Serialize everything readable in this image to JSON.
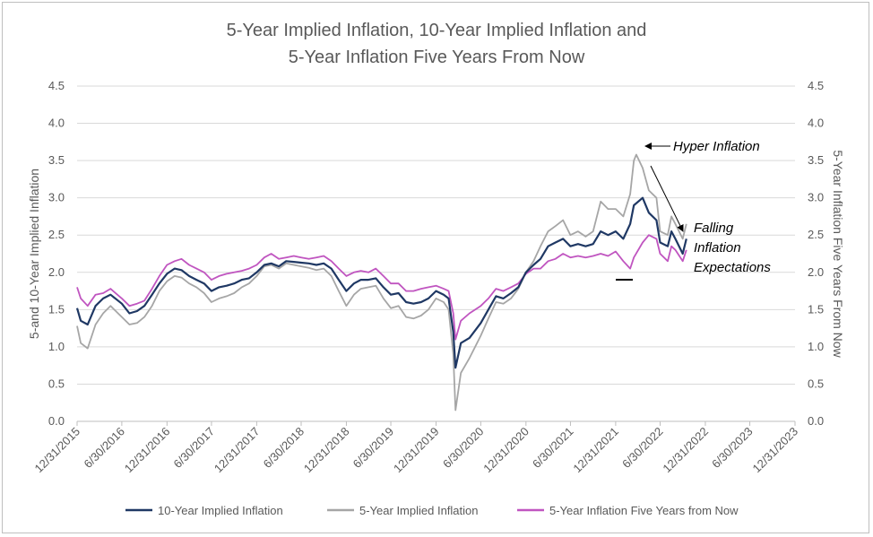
{
  "chart_data": {
    "type": "line",
    "title_line1": "5-Year Implied Inflation, 10-Year Implied Inflation and",
    "title_line2": "5-Year Inflation Five Years From Now",
    "ylabel_left": "5-and 10-Year Implied Inflation",
    "ylabel_right": "5-Year Inflation Five Years From Now",
    "ylim": [
      0,
      4.5
    ],
    "yticks": [
      "0.0",
      "0.5",
      "1.0",
      "1.5",
      "2.0",
      "2.5",
      "3.0",
      "3.5",
      "4.0",
      "4.5"
    ],
    "x_range": [
      "2015-12-31",
      "2023-12-31"
    ],
    "xticks": [
      "12/31/2015",
      "6/30/2016",
      "12/31/2016",
      "6/30/2017",
      "12/31/2017",
      "6/30/2018",
      "12/31/2018",
      "6/30/2019",
      "12/31/2019",
      "6/30/2020",
      "12/31/2020",
      "6/30/2021",
      "12/31/2021",
      "6/30/2022",
      "12/31/2022",
      "6/30/2023",
      "12/31/2023"
    ],
    "grid": true,
    "legend_position": "bottom",
    "series": [
      {
        "name": "10-Year Implied Inflation",
        "color": "#1f3864",
        "points": [
          [
            "2015-12-31",
            1.52
          ],
          [
            "2016-01-15",
            1.35
          ],
          [
            "2016-02-12",
            1.3
          ],
          [
            "2016-03-15",
            1.55
          ],
          [
            "2016-04-15",
            1.65
          ],
          [
            "2016-05-15",
            1.7
          ],
          [
            "2016-06-30",
            1.58
          ],
          [
            "2016-07-31",
            1.45
          ],
          [
            "2016-08-31",
            1.48
          ],
          [
            "2016-09-30",
            1.55
          ],
          [
            "2016-10-31",
            1.7
          ],
          [
            "2016-11-30",
            1.85
          ],
          [
            "2016-12-31",
            1.98
          ],
          [
            "2017-01-31",
            2.05
          ],
          [
            "2017-02-28",
            2.03
          ],
          [
            "2017-03-31",
            1.95
          ],
          [
            "2017-04-30",
            1.9
          ],
          [
            "2017-05-31",
            1.85
          ],
          [
            "2017-06-30",
            1.75
          ],
          [
            "2017-07-31",
            1.8
          ],
          [
            "2017-08-31",
            1.82
          ],
          [
            "2017-09-30",
            1.85
          ],
          [
            "2017-10-31",
            1.9
          ],
          [
            "2017-11-30",
            1.92
          ],
          [
            "2017-12-31",
            2.0
          ],
          [
            "2018-01-31",
            2.1
          ],
          [
            "2018-02-28",
            2.12
          ],
          [
            "2018-03-31",
            2.08
          ],
          [
            "2018-04-30",
            2.15
          ],
          [
            "2018-05-31",
            2.14
          ],
          [
            "2018-06-30",
            2.13
          ],
          [
            "2018-07-31",
            2.12
          ],
          [
            "2018-08-31",
            2.1
          ],
          [
            "2018-09-30",
            2.12
          ],
          [
            "2018-10-31",
            2.05
          ],
          [
            "2018-11-30",
            1.9
          ],
          [
            "2018-12-31",
            1.75
          ],
          [
            "2019-01-31",
            1.85
          ],
          [
            "2019-02-28",
            1.9
          ],
          [
            "2019-03-31",
            1.9
          ],
          [
            "2019-04-30",
            1.92
          ],
          [
            "2019-05-31",
            1.8
          ],
          [
            "2019-06-30",
            1.7
          ],
          [
            "2019-07-31",
            1.72
          ],
          [
            "2019-08-31",
            1.6
          ],
          [
            "2019-09-30",
            1.58
          ],
          [
            "2019-10-31",
            1.6
          ],
          [
            "2019-11-30",
            1.65
          ],
          [
            "2019-12-31",
            1.75
          ],
          [
            "2020-01-31",
            1.7
          ],
          [
            "2020-02-20",
            1.65
          ],
          [
            "2020-03-10",
            1.2
          ],
          [
            "2020-03-19",
            0.72
          ],
          [
            "2020-04-10",
            1.05
          ],
          [
            "2020-05-15",
            1.12
          ],
          [
            "2020-06-30",
            1.32
          ],
          [
            "2020-07-31",
            1.5
          ],
          [
            "2020-08-31",
            1.68
          ],
          [
            "2020-09-30",
            1.65
          ],
          [
            "2020-10-31",
            1.72
          ],
          [
            "2020-11-30",
            1.8
          ],
          [
            "2020-12-31",
            2.0
          ],
          [
            "2021-01-31",
            2.1
          ],
          [
            "2021-02-28",
            2.18
          ],
          [
            "2021-03-31",
            2.35
          ],
          [
            "2021-04-30",
            2.4
          ],
          [
            "2021-05-31",
            2.45
          ],
          [
            "2021-06-30",
            2.35
          ],
          [
            "2021-07-31",
            2.38
          ],
          [
            "2021-08-31",
            2.35
          ],
          [
            "2021-09-30",
            2.38
          ],
          [
            "2021-10-31",
            2.55
          ],
          [
            "2021-11-30",
            2.5
          ],
          [
            "2021-12-31",
            2.55
          ],
          [
            "2022-01-31",
            2.45
          ],
          [
            "2022-02-28",
            2.65
          ],
          [
            "2022-03-15",
            2.9
          ],
          [
            "2022-04-20",
            3.0
          ],
          [
            "2022-05-15",
            2.8
          ],
          [
            "2022-06-15",
            2.7
          ],
          [
            "2022-06-30",
            2.4
          ],
          [
            "2022-07-31",
            2.35
          ],
          [
            "2022-08-15",
            2.55
          ],
          [
            "2022-08-31",
            2.45
          ],
          [
            "2022-09-30",
            2.25
          ],
          [
            "2022-10-15",
            2.45
          ]
        ]
      },
      {
        "name": "5-Year Implied Inflation",
        "color": "#a6a6a6",
        "points": [
          [
            "2015-12-31",
            1.28
          ],
          [
            "2016-01-15",
            1.05
          ],
          [
            "2016-02-12",
            0.98
          ],
          [
            "2016-03-15",
            1.3
          ],
          [
            "2016-04-15",
            1.45
          ],
          [
            "2016-05-15",
            1.55
          ],
          [
            "2016-06-30",
            1.4
          ],
          [
            "2016-07-31",
            1.3
          ],
          [
            "2016-08-31",
            1.32
          ],
          [
            "2016-09-30",
            1.4
          ],
          [
            "2016-10-31",
            1.55
          ],
          [
            "2016-11-30",
            1.75
          ],
          [
            "2016-12-31",
            1.88
          ],
          [
            "2017-01-31",
            1.95
          ],
          [
            "2017-02-28",
            1.93
          ],
          [
            "2017-03-31",
            1.85
          ],
          [
            "2017-04-30",
            1.8
          ],
          [
            "2017-05-31",
            1.72
          ],
          [
            "2017-06-30",
            1.6
          ],
          [
            "2017-07-31",
            1.65
          ],
          [
            "2017-08-31",
            1.68
          ],
          [
            "2017-09-30",
            1.72
          ],
          [
            "2017-10-31",
            1.8
          ],
          [
            "2017-11-30",
            1.85
          ],
          [
            "2017-12-31",
            1.95
          ],
          [
            "2018-01-31",
            2.08
          ],
          [
            "2018-02-28",
            2.1
          ],
          [
            "2018-03-31",
            2.05
          ],
          [
            "2018-04-30",
            2.12
          ],
          [
            "2018-05-31",
            2.1
          ],
          [
            "2018-06-30",
            2.08
          ],
          [
            "2018-07-31",
            2.06
          ],
          [
            "2018-08-31",
            2.03
          ],
          [
            "2018-09-30",
            2.05
          ],
          [
            "2018-10-31",
            1.95
          ],
          [
            "2018-11-30",
            1.75
          ],
          [
            "2018-12-31",
            1.55
          ],
          [
            "2019-01-31",
            1.7
          ],
          [
            "2019-02-28",
            1.78
          ],
          [
            "2019-03-31",
            1.8
          ],
          [
            "2019-04-30",
            1.82
          ],
          [
            "2019-05-31",
            1.65
          ],
          [
            "2019-06-30",
            1.52
          ],
          [
            "2019-07-31",
            1.55
          ],
          [
            "2019-08-31",
            1.4
          ],
          [
            "2019-09-30",
            1.38
          ],
          [
            "2019-10-31",
            1.42
          ],
          [
            "2019-11-30",
            1.5
          ],
          [
            "2019-12-31",
            1.65
          ],
          [
            "2020-01-31",
            1.6
          ],
          [
            "2020-02-20",
            1.5
          ],
          [
            "2020-03-10",
            0.9
          ],
          [
            "2020-03-19",
            0.15
          ],
          [
            "2020-04-10",
            0.65
          ],
          [
            "2020-05-15",
            0.85
          ],
          [
            "2020-06-30",
            1.15
          ],
          [
            "2020-07-31",
            1.38
          ],
          [
            "2020-08-31",
            1.6
          ],
          [
            "2020-09-30",
            1.58
          ],
          [
            "2020-10-31",
            1.65
          ],
          [
            "2020-11-30",
            1.78
          ],
          [
            "2020-12-31",
            2.0
          ],
          [
            "2021-01-31",
            2.15
          ],
          [
            "2021-02-28",
            2.35
          ],
          [
            "2021-03-31",
            2.55
          ],
          [
            "2021-04-30",
            2.62
          ],
          [
            "2021-05-31",
            2.7
          ],
          [
            "2021-06-30",
            2.5
          ],
          [
            "2021-07-31",
            2.55
          ],
          [
            "2021-08-31",
            2.48
          ],
          [
            "2021-09-30",
            2.55
          ],
          [
            "2021-10-31",
            2.95
          ],
          [
            "2021-11-30",
            2.85
          ],
          [
            "2021-12-31",
            2.85
          ],
          [
            "2022-01-31",
            2.75
          ],
          [
            "2022-02-28",
            3.05
          ],
          [
            "2022-03-15",
            3.5
          ],
          [
            "2022-03-25",
            3.58
          ],
          [
            "2022-04-20",
            3.4
          ],
          [
            "2022-05-15",
            3.1
          ],
          [
            "2022-06-15",
            3.0
          ],
          [
            "2022-06-30",
            2.55
          ],
          [
            "2022-07-31",
            2.5
          ],
          [
            "2022-08-15",
            2.75
          ],
          [
            "2022-08-31",
            2.65
          ],
          [
            "2022-09-30",
            2.45
          ],
          [
            "2022-10-15",
            2.65
          ]
        ]
      },
      {
        "name": "5-Year Inflation Five Years from Now",
        "color": "#c055c0",
        "points": [
          [
            "2015-12-31",
            1.8
          ],
          [
            "2016-01-15",
            1.65
          ],
          [
            "2016-02-12",
            1.55
          ],
          [
            "2016-03-15",
            1.7
          ],
          [
            "2016-04-15",
            1.72
          ],
          [
            "2016-05-15",
            1.78
          ],
          [
            "2016-06-30",
            1.65
          ],
          [
            "2016-07-31",
            1.55
          ],
          [
            "2016-08-31",
            1.58
          ],
          [
            "2016-09-30",
            1.62
          ],
          [
            "2016-10-31",
            1.78
          ],
          [
            "2016-11-30",
            1.95
          ],
          [
            "2016-12-31",
            2.1
          ],
          [
            "2017-01-31",
            2.15
          ],
          [
            "2017-02-28",
            2.18
          ],
          [
            "2017-03-31",
            2.1
          ],
          [
            "2017-04-30",
            2.05
          ],
          [
            "2017-05-31",
            2.0
          ],
          [
            "2017-06-30",
            1.9
          ],
          [
            "2017-07-31",
            1.95
          ],
          [
            "2017-08-31",
            1.98
          ],
          [
            "2017-09-30",
            2.0
          ],
          [
            "2017-10-31",
            2.02
          ],
          [
            "2017-11-30",
            2.05
          ],
          [
            "2017-12-31",
            2.1
          ],
          [
            "2018-01-31",
            2.2
          ],
          [
            "2018-02-28",
            2.25
          ],
          [
            "2018-03-31",
            2.18
          ],
          [
            "2018-04-30",
            2.2
          ],
          [
            "2018-05-31",
            2.22
          ],
          [
            "2018-06-30",
            2.2
          ],
          [
            "2018-07-31",
            2.18
          ],
          [
            "2018-08-31",
            2.2
          ],
          [
            "2018-09-30",
            2.22
          ],
          [
            "2018-10-31",
            2.15
          ],
          [
            "2018-11-30",
            2.05
          ],
          [
            "2018-12-31",
            1.95
          ],
          [
            "2019-01-31",
            2.0
          ],
          [
            "2019-02-28",
            2.02
          ],
          [
            "2019-03-31",
            2.0
          ],
          [
            "2019-04-30",
            2.05
          ],
          [
            "2019-05-31",
            1.95
          ],
          [
            "2019-06-30",
            1.85
          ],
          [
            "2019-07-31",
            1.85
          ],
          [
            "2019-08-31",
            1.75
          ],
          [
            "2019-09-30",
            1.75
          ],
          [
            "2019-10-31",
            1.78
          ],
          [
            "2019-11-30",
            1.8
          ],
          [
            "2019-12-31",
            1.82
          ],
          [
            "2020-01-31",
            1.78
          ],
          [
            "2020-02-20",
            1.75
          ],
          [
            "2020-03-10",
            1.45
          ],
          [
            "2020-03-19",
            1.1
          ],
          [
            "2020-04-10",
            1.35
          ],
          [
            "2020-05-15",
            1.45
          ],
          [
            "2020-06-30",
            1.55
          ],
          [
            "2020-07-31",
            1.65
          ],
          [
            "2020-08-31",
            1.78
          ],
          [
            "2020-09-30",
            1.75
          ],
          [
            "2020-10-31",
            1.8
          ],
          [
            "2020-11-30",
            1.85
          ],
          [
            "2020-12-31",
            1.98
          ],
          [
            "2021-01-31",
            2.05
          ],
          [
            "2021-02-28",
            2.05
          ],
          [
            "2021-03-31",
            2.15
          ],
          [
            "2021-04-30",
            2.18
          ],
          [
            "2021-05-31",
            2.25
          ],
          [
            "2021-06-30",
            2.2
          ],
          [
            "2021-07-31",
            2.22
          ],
          [
            "2021-08-31",
            2.2
          ],
          [
            "2021-09-30",
            2.22
          ],
          [
            "2021-10-31",
            2.25
          ],
          [
            "2021-11-30",
            2.22
          ],
          [
            "2021-12-31",
            2.28
          ],
          [
            "2022-01-31",
            2.15
          ],
          [
            "2022-02-28",
            2.05
          ],
          [
            "2022-03-15",
            2.2
          ],
          [
            "2022-04-20",
            2.4
          ],
          [
            "2022-05-15",
            2.5
          ],
          [
            "2022-06-15",
            2.45
          ],
          [
            "2022-06-30",
            2.25
          ],
          [
            "2022-07-31",
            2.15
          ],
          [
            "2022-08-15",
            2.35
          ],
          [
            "2022-08-31",
            2.3
          ],
          [
            "2022-09-30",
            2.15
          ],
          [
            "2022-10-15",
            2.3
          ]
        ]
      }
    ],
    "annotations": {
      "hyper": "Hyper Inflation",
      "falling_1": "Falling",
      "falling_2": "Inflation",
      "falling_3": "Expectations"
    }
  }
}
